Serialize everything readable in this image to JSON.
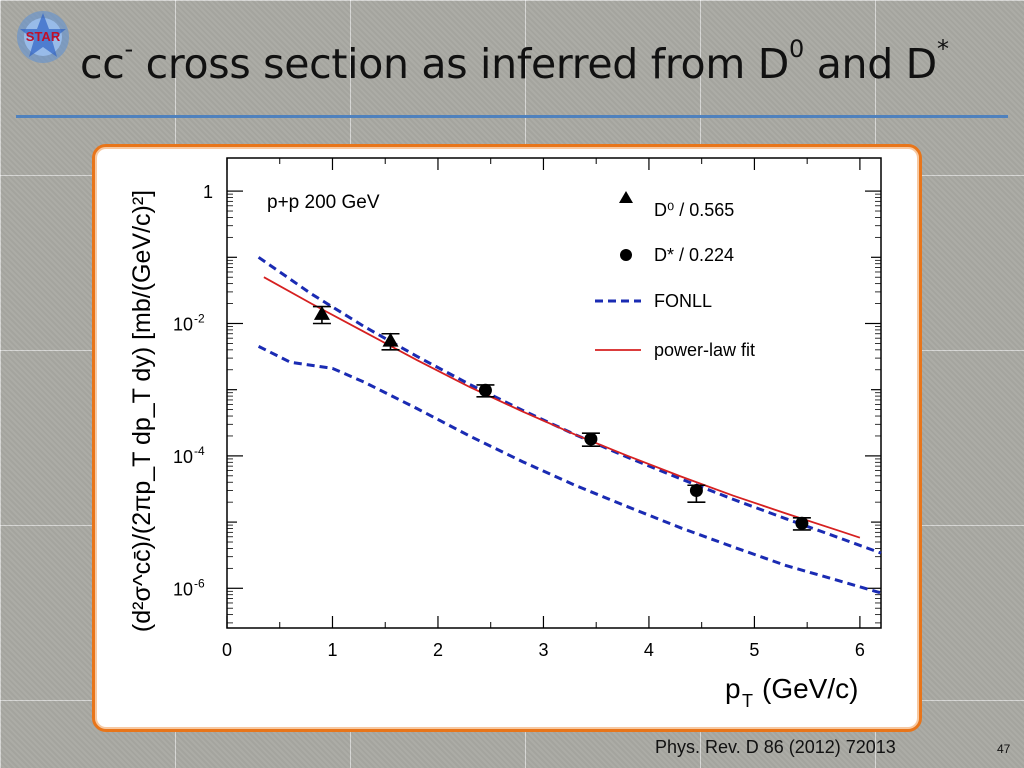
{
  "slide": {
    "title_main": "cc",
    "title_sup1": "-",
    "title_text": " cross section as inferred from D",
    "title_sup2": "0",
    "title_text2": " and D",
    "title_sup3": "*",
    "citation": "Phys. Rev. D 86 (2012) 72013",
    "page_number": "47",
    "logo_text": "STAR",
    "colors": {
      "accent_rule": "#4f81bd",
      "frame": "#e8751a"
    }
  },
  "chart_data": {
    "type": "scatter",
    "annotation": "p+p 200 GeV",
    "xlabel": "p",
    "xlabel_sub": "T",
    "xlabel_unit": "(GeV/c)",
    "ylabel": "(d²σ^cc̄)/(2πp_T dp_T dy) [mb/(GeV/c)²]",
    "xlim": [
      0,
      6.2
    ],
    "ylim_log10": [
      -6.6,
      0.5
    ],
    "y_scale": "log",
    "x_ticks": [
      0,
      1,
      2,
      3,
      4,
      5,
      6
    ],
    "y_ticks": [
      {
        "value": 1,
        "base": "1",
        "exp": ""
      },
      {
        "value": 0.01,
        "base": "10",
        "exp": "-2"
      },
      {
        "value": 0.0001,
        "base": "10",
        "exp": "-4"
      },
      {
        "value": 1e-06,
        "base": "10",
        "exp": "-6"
      }
    ],
    "legend_position": "top-right",
    "series": [
      {
        "name": "D⁰ / 0.565",
        "marker": "triangle",
        "color": "#000000",
        "x": [
          0.9,
          1.55
        ],
        "y": [
          0.014,
          0.0055
        ],
        "yerr_low": [
          0.004,
          0.0015
        ],
        "yerr_high": [
          0.004,
          0.0015
        ]
      },
      {
        "name": "D* / 0.224",
        "marker": "circle",
        "color": "#000000",
        "x": [
          2.45,
          3.45,
          4.45,
          5.45
        ],
        "y": [
          0.00098,
          0.00018,
          3e-05,
          9.6e-06
        ],
        "yerr_low": [
          0.0002,
          4e-05,
          1e-05,
          2e-06
        ],
        "yerr_high": [
          0.0002,
          4e-05,
          6e-06,
          2e-06
        ]
      },
      {
        "name": "FONLL",
        "style": "dashed",
        "color": "#1a2bb3",
        "x": [
          0.3,
          0.8,
          1.3,
          1.8,
          2.3,
          2.8,
          3.3,
          3.8,
          4.3,
          4.8,
          5.3,
          5.8,
          6.2
        ],
        "y": [
          0.1,
          0.028,
          0.009,
          0.0032,
          0.0012,
          0.00049,
          0.00021,
          9.5e-05,
          4.5e-05,
          2.2e-05,
          1.12e-05,
          5.8e-06,
          3.4e-06
        ]
      },
      {
        "name": "",
        "style": "dashed",
        "color": "#1a2bb3",
        "x": [
          0.3,
          0.6,
          1.0,
          1.3,
          1.8,
          2.3,
          2.8,
          3.3,
          3.8,
          4.3,
          4.8,
          5.3,
          5.8,
          6.2
        ],
        "y": [
          0.0045,
          0.0026,
          0.0021,
          0.0013,
          0.00052,
          0.0002,
          8.2e-05,
          3.6e-05,
          1.7e-05,
          8.2e-06,
          4.2e-06,
          2.2e-06,
          1.3e-06,
          8.5e-07
        ]
      },
      {
        "name": "power-law fit",
        "style": "solid",
        "color": "#d62020",
        "x": [
          0.35,
          0.8,
          1.3,
          1.8,
          2.3,
          2.8,
          3.3,
          3.8,
          4.3,
          4.8,
          5.3,
          5.8,
          6.0
        ],
        "y": [
          0.05,
          0.02,
          0.0075,
          0.0028,
          0.0011,
          0.00047,
          0.00021,
          0.0001,
          4.9e-05,
          2.5e-05,
          1.35e-05,
          7.4e-06,
          5.8e-06
        ]
      }
    ]
  }
}
